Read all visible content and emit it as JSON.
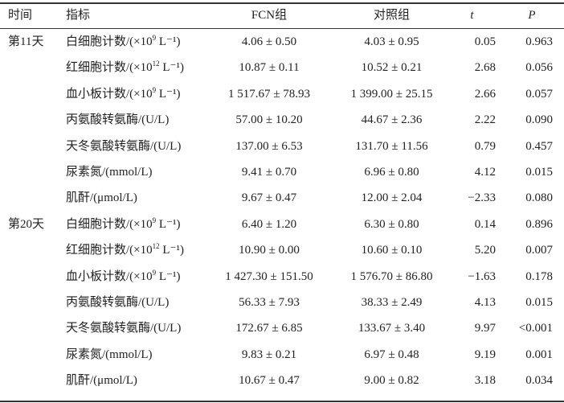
{
  "header": {
    "time": "时间",
    "indicator": "指标",
    "fcn": "FCN组",
    "control": "对照组",
    "t": "t",
    "p": "P"
  },
  "groups": [
    {
      "time": "第11天",
      "rows": [
        {
          "ind_pre": "白细胞计数/(×10",
          "ind_sup": "9",
          "ind_post": " L⁻¹)",
          "fcn": "4.06 ± 0.50",
          "ctl": "4.03 ± 0.95",
          "t": "0.05",
          "p": "0.963"
        },
        {
          "ind_pre": "红细胞计数/(×10",
          "ind_sup": "12",
          "ind_post": " L⁻¹)",
          "fcn": "10.87 ± 0.11",
          "ctl": "10.52 ± 0.21",
          "t": "2.68",
          "p": "0.056"
        },
        {
          "ind_pre": "血小板计数/(×10",
          "ind_sup": "9",
          "ind_post": " L⁻¹)",
          "fcn": "1 517.67 ± 78.93",
          "ctl": "1 399.00 ± 25.15",
          "t": "2.66",
          "p": "0.057"
        },
        {
          "ind_pre": "丙氨酸转氨酶/(U/L)",
          "ind_sup": "",
          "ind_post": "",
          "fcn": "57.00 ± 10.20",
          "ctl": "44.67 ± 2.36",
          "t": "2.22",
          "p": "0.090"
        },
        {
          "ind_pre": "天冬氨酸转氨酶/(U/L)",
          "ind_sup": "",
          "ind_post": "",
          "fcn": "137.00 ± 6.53",
          "ctl": "131.70 ± 11.56",
          "t": "0.79",
          "p": "0.457"
        },
        {
          "ind_pre": "尿素氮/(mmol/L)",
          "ind_sup": "",
          "ind_post": "",
          "fcn": "9.41 ± 0.70",
          "ctl": "6.96 ± 0.80",
          "t": "4.12",
          "p": "0.015"
        },
        {
          "ind_pre": "肌酐/(μmol/L)",
          "ind_sup": "",
          "ind_post": "",
          "fcn": "9.67 ± 0.47",
          "ctl": "12.00 ± 2.04",
          "t": "−2.33",
          "p": "0.080"
        }
      ]
    },
    {
      "time": "第20天",
      "rows": [
        {
          "ind_pre": "白细胞计数/(×10",
          "ind_sup": "9",
          "ind_post": " L⁻¹)",
          "fcn": "6.40 ± 1.20",
          "ctl": "6.30 ± 0.80",
          "t": "0.14",
          "p": "0.896"
        },
        {
          "ind_pre": "红细胞计数/(×10",
          "ind_sup": "12",
          "ind_post": " L⁻¹)",
          "fcn": "10.90 ± 0.00",
          "ctl": "10.60 ± 0.10",
          "t": "5.20",
          "p": "0.007"
        },
        {
          "ind_pre": "血小板计数/(×10",
          "ind_sup": "9",
          "ind_post": " L⁻¹)",
          "fcn": "1 427.30 ± 151.50",
          "ctl": "1 576.70 ± 86.80",
          "t": "−1.63",
          "p": "0.178"
        },
        {
          "ind_pre": "丙氨酸转氨酶/(U/L)",
          "ind_sup": "",
          "ind_post": "",
          "fcn": "56.33 ± 7.93",
          "ctl": "38.33 ± 2.49",
          "t": "4.13",
          "p": "0.015"
        },
        {
          "ind_pre": "天冬氨酸转氨酶/(U/L)",
          "ind_sup": "",
          "ind_post": "",
          "fcn": "172.67 ± 6.85",
          "ctl": "133.67 ± 3.40",
          "t": "9.97",
          "p": "<0.001"
        },
        {
          "ind_pre": "尿素氮/(mmol/L)",
          "ind_sup": "",
          "ind_post": "",
          "fcn": "9.83 ± 0.21",
          "ctl": "6.97 ± 0.48",
          "t": "9.19",
          "p": "0.001"
        },
        {
          "ind_pre": "肌酐/(μmol/L)",
          "ind_sup": "",
          "ind_post": "",
          "fcn": "10.67 ± 0.47",
          "ctl": "9.00 ± 0.82",
          "t": "3.18",
          "p": "0.034"
        }
      ]
    }
  ]
}
